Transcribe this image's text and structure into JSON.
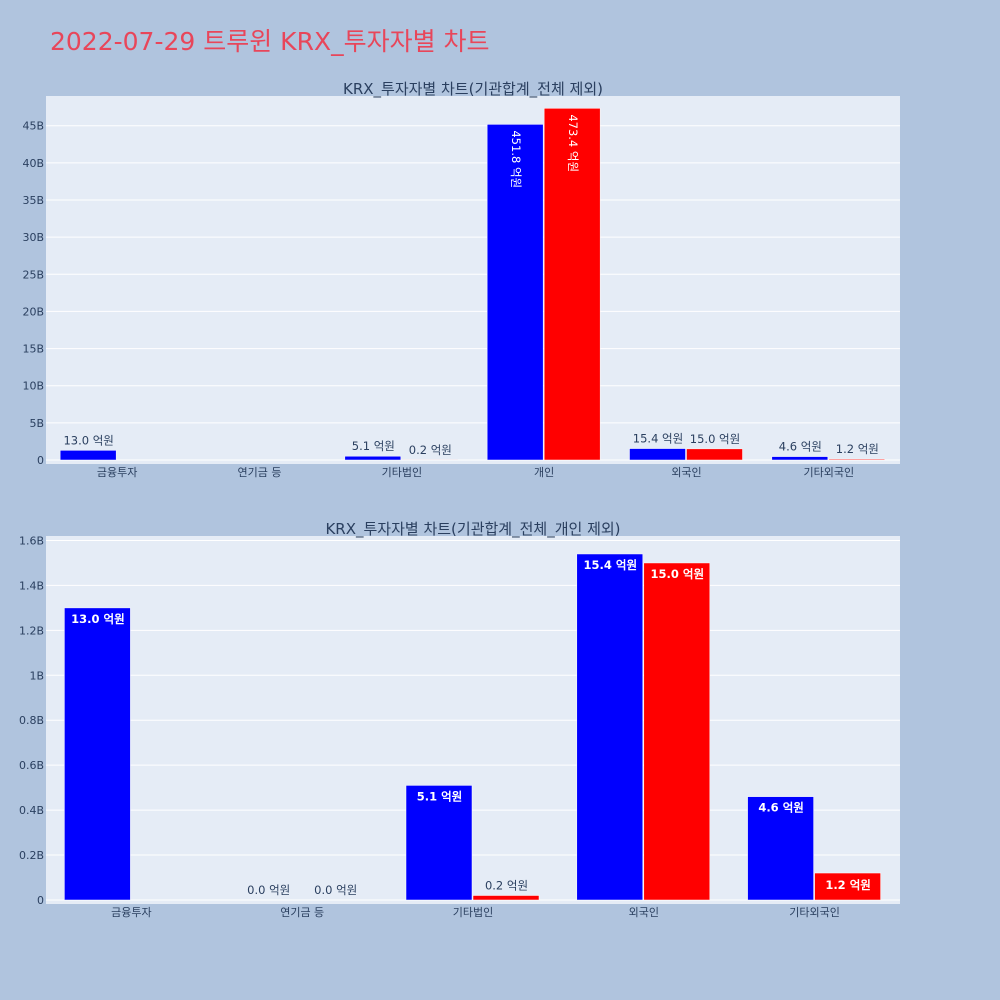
{
  "page_title": "2022-07-29 트루윈 KRX_투자자별 차트",
  "colors": {
    "buy": "#0000ff",
    "sell": "#ff0000",
    "plot_bg": "#e5ecf6",
    "paper_bg": "#b0c4de",
    "title": "#e8465a",
    "text": "#2a3f5f"
  },
  "chart_data": [
    {
      "type": "bar",
      "title": "KRX_투자자별 차트(기관합계_전체 제외)",
      "categories": [
        "금융투자",
        "연기금 등",
        "기타법인",
        "개인",
        "외국인",
        "기타외국인"
      ],
      "series": [
        {
          "color": "#0000ff",
          "values": [
            1300000000,
            null,
            510000000,
            45180000000,
            1540000000,
            460000000
          ],
          "labels": [
            "13.0 억원",
            "",
            "5.1 억원",
            "451.8 억원",
            "15.4 억원",
            "4.6 억원"
          ]
        },
        {
          "color": "#ff0000",
          "values": [
            null,
            null,
            20000000,
            47340000000,
            1500000000,
            120000000
          ],
          "labels": [
            "",
            "",
            "0.2 억원",
            "473.4 억원",
            "15.0 억원",
            "1.2 억원"
          ]
        }
      ],
      "ylim": [
        0,
        49000000000
      ],
      "yticks": [
        0,
        5000000000,
        10000000000,
        15000000000,
        20000000000,
        25000000000,
        30000000000,
        35000000000,
        40000000000,
        45000000000
      ],
      "ytick_labels": [
        "0",
        "5B",
        "10B",
        "15B",
        "20B",
        "25B",
        "30B",
        "35B",
        "40B",
        "45B"
      ],
      "grid": true
    },
    {
      "type": "bar",
      "title": "KRX_투자자별 차트(기관합계_전체_개인 제외)",
      "categories": [
        "금융투자",
        "연기금 등",
        "기타법인",
        "외국인",
        "기타외국인"
      ],
      "series": [
        {
          "color": "#0000ff",
          "values": [
            1300000000,
            0,
            510000000,
            1540000000,
            460000000
          ],
          "labels": [
            "13.0 억원",
            "0.0 억원",
            "5.1 억원",
            "15.4 억원",
            "4.6 억원"
          ]
        },
        {
          "color": "#ff0000",
          "values": [
            null,
            0,
            20000000,
            1500000000,
            120000000
          ],
          "labels": [
            "",
            "0.0 억원",
            "0.2 억원",
            "15.0 억원",
            "1.2 억원"
          ]
        }
      ],
      "ylim": [
        0,
        1620000000
      ],
      "yticks": [
        0,
        200000000,
        400000000,
        600000000,
        800000000,
        1000000000,
        1200000000,
        1400000000,
        1600000000
      ],
      "ytick_labels": [
        "0",
        "0.2B",
        "0.4B",
        "0.6B",
        "0.8B",
        "1B",
        "1.2B",
        "1.4B",
        "1.6B"
      ],
      "grid": true
    }
  ]
}
